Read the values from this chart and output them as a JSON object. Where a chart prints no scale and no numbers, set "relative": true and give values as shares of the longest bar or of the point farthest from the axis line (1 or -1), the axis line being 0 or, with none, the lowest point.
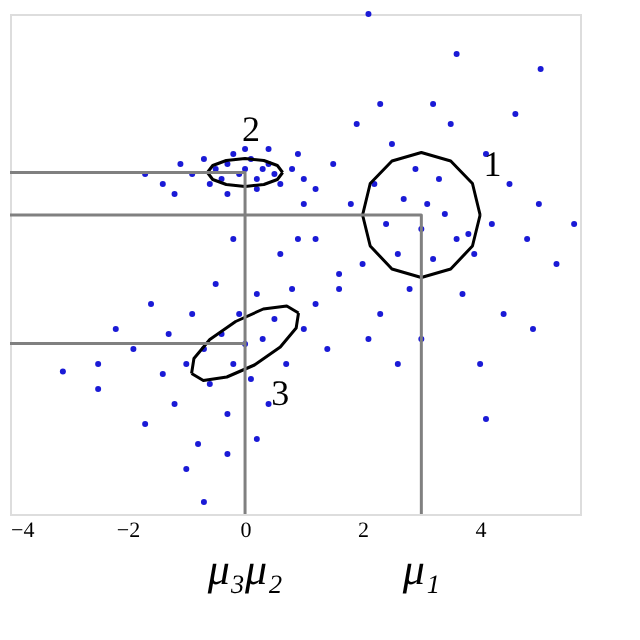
{
  "chart_data": {
    "type": "scatter",
    "relative": true,
    "xlim": [
      -4,
      5.7
    ],
    "xticks": [
      {
        "value": -4,
        "label": "−4"
      },
      {
        "value": -2,
        "label": "−2"
      },
      0,
      2,
      4
    ],
    "tick_labels": "x",
    "grid": false,
    "marker": "circle",
    "series": [
      {
        "color": "#1a1ad6",
        "x": [
          -1.1,
          -0.9,
          -0.7,
          -0.5,
          -0.4,
          -0.3,
          -0.2,
          -0.1,
          0,
          0.1,
          0.2,
          0.3,
          0.4,
          0.5,
          0.6,
          0.8,
          1.0,
          -0.6,
          0.0,
          0.2,
          -1.4,
          -1.7,
          -1.2,
          0.9,
          1.2,
          -0.3,
          0.4,
          -3.1,
          -2.5,
          -2.5,
          -2.2,
          -1.9,
          -1.7,
          -1.6,
          -1.4,
          -1.3,
          -1.2,
          -1.0,
          -0.9,
          -0.8,
          -0.7,
          -0.6,
          -0.5,
          -0.4,
          -0.3,
          -0.2,
          -0.1,
          0,
          0.1,
          0.2,
          0.3,
          0.4,
          0.5,
          0.7,
          0.8,
          1.0,
          1.2,
          1.4,
          1.6,
          -0.7,
          -0.3,
          0.2,
          2.1,
          -1.0,
          0.6,
          -0.2,
          0.9,
          1.2,
          1.5,
          1.6,
          1.8,
          1.9,
          2.0,
          2.2,
          2.3,
          2.4,
          2.5,
          2.6,
          2.7,
          2.8,
          2.9,
          3.0,
          3.1,
          3.2,
          3.3,
          3.4,
          3.5,
          3.6,
          3.7,
          3.8,
          3.9,
          4.1,
          4.2,
          4.4,
          4.5,
          4.8,
          5.0,
          5.3,
          5.6,
          3.0,
          2.6,
          4.0,
          4.9,
          4.1,
          2.1,
          3.6,
          5.03,
          3.2,
          2.3,
          1.0,
          4.6
        ],
        "values": [
          0.7,
          0.68,
          0.71,
          0.69,
          0.67,
          0.7,
          0.72,
          0.68,
          0.69,
          0.71,
          0.67,
          0.69,
          0.7,
          0.68,
          0.66,
          0.69,
          0.67,
          0.66,
          0.73,
          0.65,
          0.66,
          0.68,
          0.64,
          0.72,
          0.65,
          0.64,
          0.73,
          0.285,
          0.3,
          0.25,
          0.37,
          0.33,
          0.18,
          0.42,
          0.28,
          0.36,
          0.22,
          0.3,
          0.4,
          0.14,
          0.33,
          0.26,
          0.46,
          0.36,
          0.2,
          0.3,
          0.4,
          0.34,
          0.27,
          0.44,
          0.35,
          0.22,
          0.39,
          0.3,
          0.45,
          0.37,
          0.42,
          0.33,
          0.48,
          0.024,
          0.12,
          0.15,
          0.35,
          0.09,
          0.52,
          0.55,
          0.55,
          0.55,
          0.7,
          0.45,
          0.62,
          0.78,
          0.5,
          0.66,
          0.4,
          0.58,
          0.74,
          0.52,
          0.63,
          0.45,
          0.69,
          0.57,
          0.62,
          0.51,
          0.67,
          0.6,
          0.78,
          0.55,
          0.44,
          0.56,
          0.52,
          0.72,
          0.58,
          0.4,
          0.66,
          0.55,
          0.62,
          0.5,
          0.58,
          0.35,
          0.3,
          0.3,
          0.37,
          0.19,
          1.0,
          0.92,
          0.89,
          0.82,
          0.82,
          0.62,
          0.8
        ]
      },
      {
        "type": "line",
        "marker": "none",
        "color": "#000000",
        "x": [
          2.0,
          2.13,
          2.5,
          3.0,
          3.5,
          3.87,
          4.0
        ],
        "values": [
          0.598,
          0.661,
          0.706,
          0.723,
          0.706,
          0.661,
          0.598
        ]
      },
      {
        "type": "line",
        "marker": "none",
        "color": "#000000",
        "x": [
          2.0,
          2.13,
          2.5,
          3.0,
          3.5,
          3.87,
          4.0
        ],
        "values": [
          0.598,
          0.536,
          0.49,
          0.473,
          0.49,
          0.536,
          0.598
        ]
      },
      {
        "type": "line",
        "marker": "none",
        "color": "#000000",
        "x": [
          -0.64,
          -0.55,
          -0.32,
          0,
          0.32,
          0.55,
          0.64
        ],
        "values": [
          0.683,
          0.697,
          0.707,
          0.711,
          0.707,
          0.697,
          0.683
        ]
      },
      {
        "type": "line",
        "marker": "none",
        "color": "#000000",
        "x": [
          -0.64,
          -0.55,
          -0.32,
          0,
          0.32,
          0.55,
          0.64
        ],
        "values": [
          0.683,
          0.669,
          0.659,
          0.655,
          0.659,
          0.669,
          0.683
        ]
      },
      {
        "type": "line",
        "marker": "none",
        "color": "#000000",
        "x": [
          -0.91,
          -0.87,
          -0.6,
          -0.16,
          0.31,
          0.71,
          0.91
        ],
        "values": [
          0.281,
          0.311,
          0.349,
          0.385,
          0.41,
          0.416,
          0.402
        ]
      },
      {
        "type": "line",
        "marker": "none",
        "color": "#000000",
        "x": [
          -0.91,
          -0.71,
          -0.31,
          0.16,
          0.6,
          0.87,
          0.91
        ],
        "values": [
          0.281,
          0.267,
          0.274,
          0.298,
          0.334,
          0.372,
          0.402
        ]
      },
      {
        "type": "line",
        "marker": "none",
        "color": "#808080",
        "x": [
          -4,
          0,
          0
        ],
        "values": [
          0.683,
          0.683,
          0
        ]
      },
      {
        "type": "line",
        "marker": "none",
        "color": "#808080",
        "x": [
          -4,
          3,
          3
        ],
        "values": [
          0.598,
          0.598,
          0
        ]
      },
      {
        "type": "line",
        "marker": "none",
        "color": "#808080",
        "x": [
          -4,
          0
        ],
        "values": [
          0.341,
          0.341
        ]
      }
    ],
    "annotations": [
      {
        "text": "1",
        "x": 3.87,
        "y": 0.661
      },
      {
        "text": "2",
        "x": 0,
        "y": 0.711
      },
      {
        "text": "3",
        "x": 0.6,
        "y": 0.334
      },
      {
        "text": "μ₃μ₂",
        "x": 0,
        "y": 0
      },
      {
        "text": "μ₁",
        "x": 3,
        "y": 0
      }
    ]
  }
}
